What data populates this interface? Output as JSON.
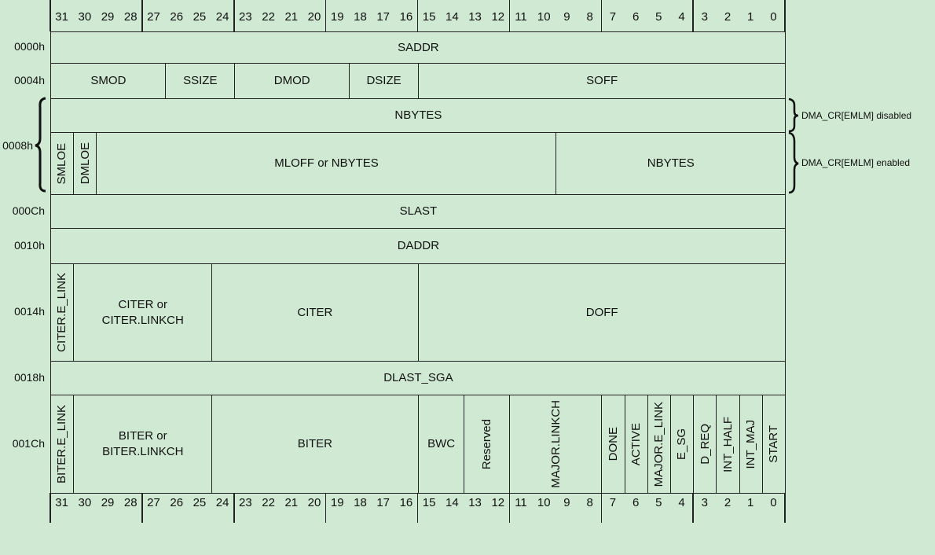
{
  "bit_numbers": [
    31,
    30,
    29,
    28,
    27,
    26,
    25,
    24,
    23,
    22,
    21,
    20,
    19,
    18,
    17,
    16,
    15,
    14,
    13,
    12,
    11,
    10,
    9,
    8,
    7,
    6,
    5,
    4,
    3,
    2,
    1,
    0
  ],
  "registers": [
    {
      "offset": "0000h",
      "rows": [
        [
          "SADDR"
        ]
      ]
    },
    {
      "offset": "0004h",
      "rows": [
        [
          "SMOD",
          "SSIZE",
          "DMOD",
          "DSIZE",
          "SOFF"
        ]
      ]
    },
    {
      "offset": "0008h",
      "rows": [
        [
          "NBYTES"
        ],
        [
          "SMLOE",
          "DMLOE",
          "MLOFF or NBYTES",
          "NBYTES"
        ]
      ]
    },
    {
      "offset": "000Ch",
      "rows": [
        [
          "SLAST"
        ]
      ]
    },
    {
      "offset": "0010h",
      "rows": [
        [
          "DADDR"
        ]
      ]
    },
    {
      "offset": "0014h",
      "rows": [
        [
          "CITER.E_LINK",
          [
            "CITER or",
            "CITER.LINKCH"
          ],
          "CITER",
          "DOFF"
        ]
      ]
    },
    {
      "offset": "0018h",
      "rows": [
        [
          "DLAST_SGA"
        ]
      ]
    },
    {
      "offset": "001Ch",
      "rows": [
        [
          "BITER.E_LINK",
          [
            "BITER or",
            "BITER.LINKCH"
          ],
          "BITER",
          "BWC",
          "Reserved",
          "MAJOR.LINKCH",
          "DONE",
          "ACTIVE",
          "MAJOR.E_LINK",
          "E_SG",
          "D_REQ",
          "INT_HALF",
          "INT_MAJ",
          "START"
        ]
      ]
    }
  ],
  "annotations": [
    "DMA_CR[EMLM] disabled",
    "DMA_CR[EMLM] enabled"
  ]
}
